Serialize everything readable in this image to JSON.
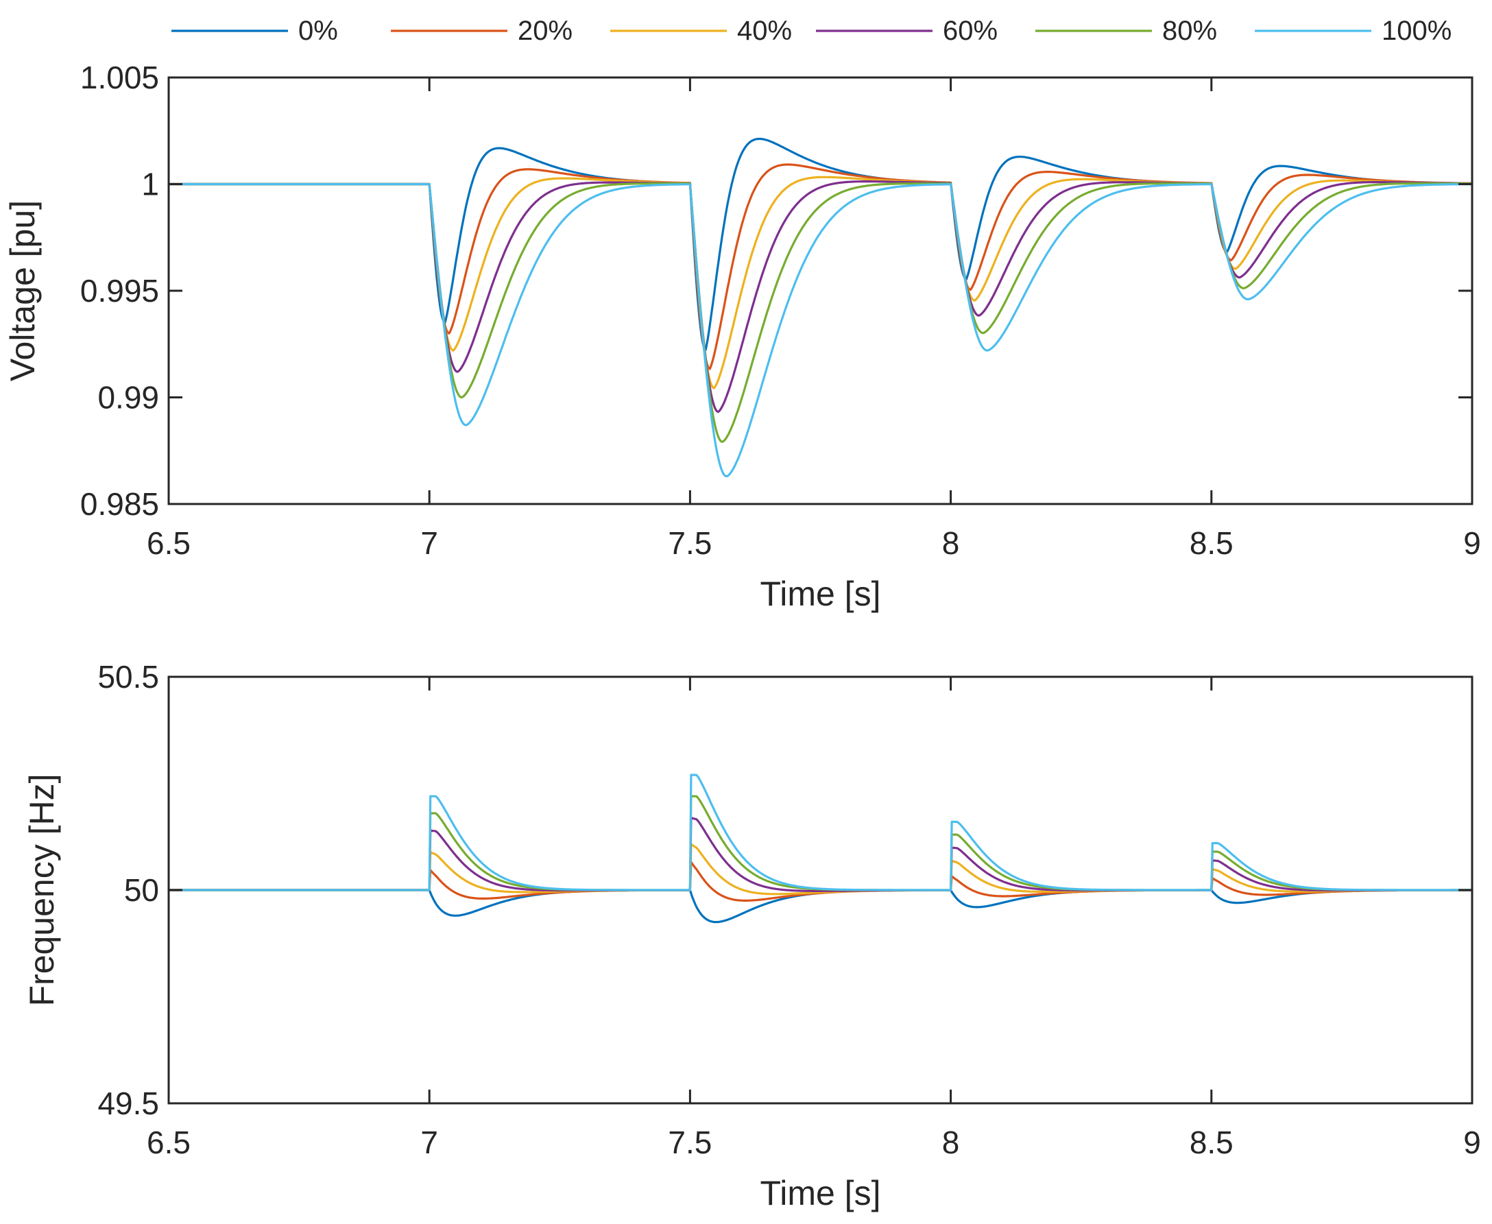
{
  "chart_data": {
    "type": "line",
    "legend": {
      "placement": "top",
      "entries": [
        {
          "name": "0%",
          "color": "#0072BD"
        },
        {
          "name": "20%",
          "color": "#D95319"
        },
        {
          "name": "40%",
          "color": "#EDB120"
        },
        {
          "name": "60%",
          "color": "#7E2F8E"
        },
        {
          "name": "80%",
          "color": "#77AC30"
        },
        {
          "name": "100%",
          "color": "#4DBEEE"
        }
      ]
    },
    "events": [
      {
        "t": 7.0,
        "v_min": [
          0.9935,
          0.993,
          0.9922,
          0.9912,
          0.99,
          0.9887
        ],
        "v_max": [
          1.002,
          1.001,
          1.0005,
          1.0002,
          1.0001,
          1.0
        ],
        "f_peak": [
          50.0,
          50.05,
          50.09,
          50.14,
          50.18,
          50.22
        ],
        "f_dip": [
          49.94,
          49.965,
          49.985,
          49.995,
          50.0,
          50.0
        ]
      },
      {
        "t": 7.5,
        "v_min": [
          0.9922,
          0.9913,
          0.9904,
          0.9893,
          0.9879,
          0.9863
        ],
        "v_max": [
          1.0025,
          1.0013,
          1.0006,
          1.0003,
          1.0001,
          1.0
        ],
        "f_peak": [
          50.0,
          50.07,
          50.11,
          50.17,
          50.22,
          50.27
        ],
        "f_dip": [
          49.925,
          49.955,
          49.975,
          49.99,
          50.0,
          50.0
        ]
      },
      {
        "t": 8.0,
        "v_min": [
          0.9955,
          0.995,
          0.9945,
          0.9938,
          0.993,
          0.9922
        ],
        "v_max": [
          1.0015,
          1.0008,
          1.0004,
          1.0002,
          1.0001,
          1.0
        ],
        "f_peak": [
          50.0,
          50.035,
          50.07,
          50.1,
          50.13,
          50.16
        ],
        "f_dip": [
          49.96,
          49.975,
          49.988,
          49.996,
          50.0,
          50.0
        ]
      },
      {
        "t": 8.5,
        "v_min": [
          0.9968,
          0.9964,
          0.996,
          0.9956,
          0.9951,
          0.9946
        ],
        "v_max": [
          1.001,
          1.0006,
          1.0003,
          1.0002,
          1.0001,
          1.0
        ],
        "f_peak": [
          50.0,
          50.03,
          50.05,
          50.07,
          50.09,
          50.11
        ],
        "f_dip": [
          49.97,
          49.98,
          49.99,
          49.996,
          50.0,
          50.0
        ]
      }
    ],
    "panels": [
      {
        "id": "voltage",
        "ylabel": "Voltage [pu]",
        "xlabel": "Time [s]",
        "xlim": [
          6.5,
          9
        ],
        "ylim": [
          0.985,
          1.005
        ],
        "xticks": [
          6.5,
          7,
          7.5,
          8,
          8.5,
          9
        ],
        "xtick_labels": [
          "6.5",
          "7",
          "7.5",
          "8",
          "8.5",
          "9"
        ],
        "yticks": [
          0.985,
          0.99,
          0.995,
          1,
          1.005
        ],
        "ytick_labels": [
          "0.985",
          "0.99",
          "0.995",
          "1",
          "1.005"
        ],
        "baseline": 1.0
      },
      {
        "id": "frequency",
        "ylabel": "Frequency [Hz]",
        "xlabel": "Time [s]",
        "xlim": [
          6.5,
          9
        ],
        "ylim": [
          49.5,
          50.5
        ],
        "xticks": [
          6.5,
          7,
          7.5,
          8,
          8.5,
          9
        ],
        "xtick_labels": [
          "6.5",
          "7",
          "7.5",
          "8",
          "8.5",
          "9"
        ],
        "yticks": [
          49.5,
          50,
          50.5
        ],
        "ytick_labels": [
          "49.5",
          "50",
          "50.5"
        ],
        "baseline": 50.0
      }
    ]
  }
}
